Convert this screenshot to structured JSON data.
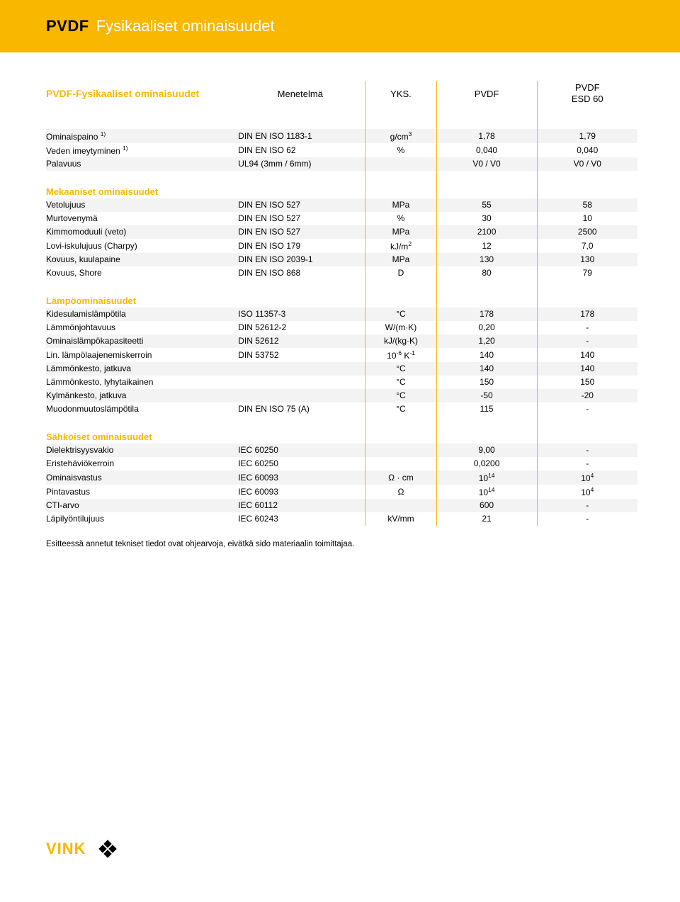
{
  "header": {
    "bold": "PVDF",
    "light": "Fysikaaliset ominaisuudet"
  },
  "columns": {
    "title": "PVDF-Fysikaaliset ominaisuudet",
    "method": "Menetelmä",
    "unit": "YKS.",
    "v1": "PVDF",
    "v2a": "PVDF",
    "v2b": "ESD 60"
  },
  "sections": [
    {
      "title": "",
      "rows": [
        {
          "prop": "Ominaispaino ",
          "sup": "1)",
          "method": "DIN EN ISO 1183-1",
          "unit": "g/cm",
          "unitSup": "3",
          "v1": "1,78",
          "v2": "1,79",
          "stripe": true
        },
        {
          "prop": "Veden imeytyminen ",
          "sup": "1)",
          "method": "DIN EN ISO 62",
          "unit": "%",
          "v1": "0,040",
          "v2": "0,040"
        },
        {
          "prop": "Palavuus",
          "method": "UL94  (3mm / 6mm)",
          "unit": "",
          "v1": "V0 / V0",
          "v2": "V0 / V0",
          "stripe": true
        }
      ]
    },
    {
      "title": "Mekaaniset ominaisuudet",
      "rows": [
        {
          "prop": "Vetolujuus",
          "method": "DIN EN ISO 527",
          "unit": "MPa",
          "v1": "55",
          "v2": "58",
          "stripe": true
        },
        {
          "prop": "Murtovenymä",
          "method": "DIN EN ISO 527",
          "unit": "%",
          "v1": "30",
          "v2": "10"
        },
        {
          "prop": "Kimmomoduuli (veto)",
          "method": "DIN EN ISO 527",
          "unit": "MPa",
          "v1": "2100",
          "v2": "2500",
          "stripe": true
        },
        {
          "prop": "Lovi-iskulujuus (Charpy)",
          "method": "DIN EN ISO 179",
          "unit": "kJ/m",
          "unitSup": "2",
          "v1": "12",
          "v2": "7,0"
        },
        {
          "prop": "Kovuus, kuulapaine",
          "method": "DIN EN ISO 2039-1",
          "unit": "MPa",
          "v1": "130",
          "v2": "130",
          "stripe": true
        },
        {
          "prop": "Kovuus, Shore",
          "method": "DIN EN ISO 868",
          "unit": "D",
          "v1": "80",
          "v2": "79"
        }
      ]
    },
    {
      "title": "Lämpöominaisuudet",
      "rows": [
        {
          "prop": "Kidesulamislämpötila",
          "method": "ISO 11357-3",
          "unit": "°C",
          "v1": "178",
          "v2": "178",
          "stripe": true
        },
        {
          "prop": "Lämmönjohtavuus",
          "method": "DIN 52612-2",
          "unit": "W/(m·K)",
          "v1": "0,20",
          "v2": "-"
        },
        {
          "prop": "Ominaislämpökapasiteetti",
          "method": "DIN 52612",
          "unit": "kJ/(kg·K)",
          "v1": "1,20",
          "v2": "-",
          "stripe": true
        },
        {
          "prop": "Lin. lämpölaajenemiskerroin",
          "method": "DIN 53752",
          "unitPre": "10",
          "unitSup": "-6",
          "unitPost": " K",
          "unitSup2": "-1",
          "v1": "140",
          "v2": "140"
        },
        {
          "prop": "Lämmönkesto, jatkuva",
          "method": "",
          "unit": "°C",
          "v1": "140",
          "v2": "140",
          "stripe": true
        },
        {
          "prop": "Lämmönkesto, lyhytaikainen",
          "method": "",
          "unit": "°C",
          "v1": "150",
          "v2": "150"
        },
        {
          "prop": "Kylmänkesto, jatkuva",
          "method": "",
          "unit": "°C",
          "v1": "-50",
          "v2": "-20",
          "stripe": true
        },
        {
          "prop": "Muodonmuutoslämpötila",
          "method": "DIN EN ISO 75 (A)",
          "unit": "°C",
          "v1": "115",
          "v2": "-"
        }
      ]
    },
    {
      "title": "Sähköiset ominaisuudet",
      "rows": [
        {
          "prop": "Dielektrisyysvakio",
          "method": "IEC 60250",
          "unit": "",
          "v1": "9,00",
          "v2": "-",
          "stripe": true
        },
        {
          "prop": "Eristehäviökerroin",
          "method": "IEC 60250",
          "unit": "",
          "v1": "0,0200",
          "v2": "-"
        },
        {
          "prop": "Ominaisvastus",
          "method": "IEC 60093",
          "unit": "Ω · cm",
          "v1pre": "10",
          "v1sup": "14",
          "v2pre": "10",
          "v2sup": "4",
          "stripe": true
        },
        {
          "prop": "Pintavastus",
          "method": "IEC 60093",
          "unit": "Ω",
          "v1pre": "10",
          "v1sup": "14",
          "v2pre": "10",
          "v2sup": "4"
        },
        {
          "prop": "CTI-arvo",
          "method": "IEC 60112",
          "unit": "",
          "v1": "600",
          "v2": "-",
          "stripe": true
        },
        {
          "prop": "Läpilyöntilujuus",
          "method": "IEC 60243",
          "unit": "kV/mm",
          "v1": "21",
          "v2": "-"
        }
      ]
    }
  ],
  "footnote": "Esitteessä annetut tekniset tiedot ovat ohjearvoja, eivätkä sido materiaalin toimittajaa.",
  "logo": {
    "text": "VINK"
  },
  "colors": {
    "accent": "#f9b700",
    "stripe": "#f3f3f3"
  }
}
